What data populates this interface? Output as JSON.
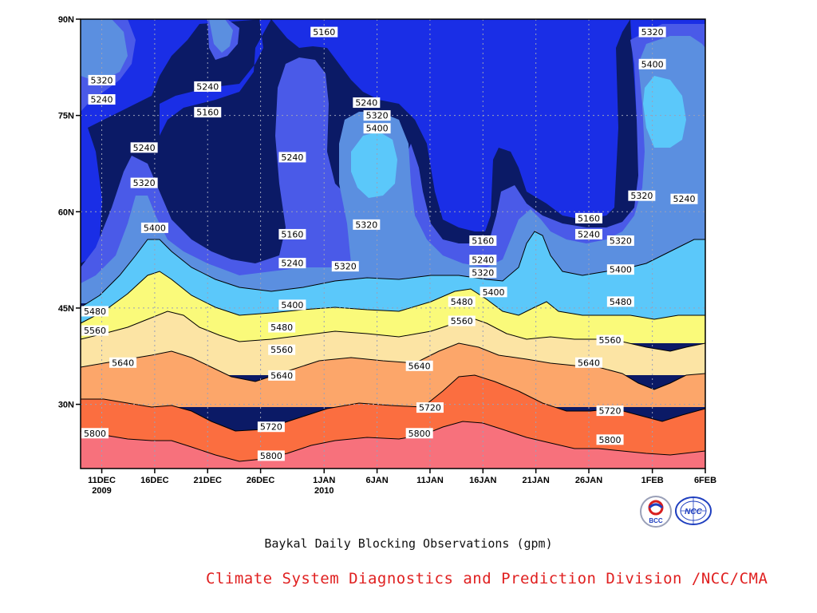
{
  "chart_data": {
    "type": "heatmap",
    "subtype": "filled-contour",
    "title": "Baykal Daily Blocking Observations (gpm)",
    "xlabel": "",
    "ylabel": "",
    "ylim_deg": [
      20,
      90
    ],
    "grid": true,
    "grid_style": "dotted",
    "y_ticks": [
      {
        "value": 30,
        "label": "30N"
      },
      {
        "value": 45,
        "label": "45N"
      },
      {
        "value": 60,
        "label": "60N"
      },
      {
        "value": 75,
        "label": "75N"
      },
      {
        "value": 90,
        "label": "90N"
      }
    ],
    "x_ticks": [
      {
        "date": "2009-12-11",
        "label": "11DEC",
        "sublabel": "2009"
      },
      {
        "date": "2009-12-16",
        "label": "16DEC",
        "sublabel": ""
      },
      {
        "date": "2009-12-21",
        "label": "21DEC",
        "sublabel": ""
      },
      {
        "date": "2009-12-26",
        "label": "26DEC",
        "sublabel": ""
      },
      {
        "date": "2010-01-01",
        "label": "1JAN",
        "sublabel": "2010"
      },
      {
        "date": "2010-01-06",
        "label": "6JAN",
        "sublabel": ""
      },
      {
        "date": "2010-01-11",
        "label": "11JAN",
        "sublabel": ""
      },
      {
        "date": "2010-01-16",
        "label": "16JAN",
        "sublabel": ""
      },
      {
        "date": "2010-01-21",
        "label": "21JAN",
        "sublabel": ""
      },
      {
        "date": "2010-01-26",
        "label": "26JAN",
        "sublabel": ""
      },
      {
        "date": "2010-02-01",
        "label": "1FEB",
        "sublabel": ""
      },
      {
        "date": "2010-02-06",
        "label": "6FEB",
        "sublabel": ""
      }
    ],
    "contour_levels": [
      5160,
      5240,
      5320,
      5400,
      5480,
      5560,
      5640,
      5720,
      5800
    ],
    "level_colors": {
      "below_5160": "#0b1a66",
      "5160_5240": "#1a2ee6",
      "5240_5320": "#4a5ae8",
      "5320_5400": "#5b8fe0",
      "5400_5480": "#5bc8fa",
      "5480_5560": "#fafa7a",
      "5560_5640": "#fce4a4",
      "5640_5720": "#fca66a",
      "5720_5800": "#fb6e40",
      "above_5800": "#f7717c"
    },
    "contour_labels": [
      {
        "text": "5160",
        "date": "2010-01-01",
        "lat": 88
      },
      {
        "text": "5320",
        "date": "2009-12-11",
        "lat": 80.5
      },
      {
        "text": "5240",
        "date": "2009-12-11",
        "lat": 77.5
      },
      {
        "text": "5240",
        "date": "2009-12-21",
        "lat": 79.5
      },
      {
        "text": "5160",
        "date": "2009-12-21",
        "lat": 75.5
      },
      {
        "text": "5240",
        "date": "2009-12-15",
        "lat": 70
      },
      {
        "text": "5320",
        "date": "2009-12-15",
        "lat": 64.5
      },
      {
        "text": "5400",
        "date": "2009-12-16",
        "lat": 57.5
      },
      {
        "text": "5240",
        "date": "2009-12-29",
        "lat": 68.5
      },
      {
        "text": "5160",
        "date": "2009-12-29",
        "lat": 56.5
      },
      {
        "text": "5240",
        "date": "2009-12-29",
        "lat": 52
      },
      {
        "text": "5320",
        "date": "2010-01-03",
        "lat": 51.5
      },
      {
        "text": "5400",
        "date": "2009-12-29",
        "lat": 45.5
      },
      {
        "text": "5240",
        "date": "2010-01-05",
        "lat": 77
      },
      {
        "text": "5320",
        "date": "2010-01-06",
        "lat": 75
      },
      {
        "text": "5400",
        "date": "2010-01-06",
        "lat": 73
      },
      {
        "text": "5320",
        "date": "2010-01-05",
        "lat": 58
      },
      {
        "text": "5160",
        "date": "2010-01-16",
        "lat": 55.5
      },
      {
        "text": "5240",
        "date": "2010-01-16",
        "lat": 52.5
      },
      {
        "text": "5320",
        "date": "2010-01-16",
        "lat": 50.5
      },
      {
        "text": "5400",
        "date": "2010-01-17",
        "lat": 47.5
      },
      {
        "text": "5480",
        "date": "2010-01-14",
        "lat": 46
      },
      {
        "text": "5560",
        "date": "2010-01-14",
        "lat": 43
      },
      {
        "text": "5160",
        "date": "2010-01-26",
        "lat": 59
      },
      {
        "text": "5240",
        "date": "2010-01-26",
        "lat": 56.5
      },
      {
        "text": "5320",
        "date": "2010-01-29",
        "lat": 55.5
      },
      {
        "text": "5400",
        "date": "2010-01-29",
        "lat": 51
      },
      {
        "text": "5480",
        "date": "2010-01-29",
        "lat": 46
      },
      {
        "text": "5560",
        "date": "2010-01-28",
        "lat": 40
      },
      {
        "text": "5640",
        "date": "2010-01-26",
        "lat": 36.5
      },
      {
        "text": "5720",
        "date": "2010-01-28",
        "lat": 29
      },
      {
        "text": "5800",
        "date": "2010-01-28",
        "lat": 24.5
      },
      {
        "text": "5320",
        "date": "2010-02-01",
        "lat": 88
      },
      {
        "text": "5400",
        "date": "2010-02-01",
        "lat": 83
      },
      {
        "text": "5320",
        "date": "2010-01-31",
        "lat": 62.5
      },
      {
        "text": "5240",
        "date": "2010-02-04",
        "lat": 62
      },
      {
        "text": "5480",
        "date": "2009-12-10",
        "lat": 44.5
      },
      {
        "text": "5560",
        "date": "2009-12-10",
        "lat": 41.5
      },
      {
        "text": "5640",
        "date": "2009-12-13",
        "lat": 36.5
      },
      {
        "text": "5480",
        "date": "2009-12-28",
        "lat": 42
      },
      {
        "text": "5560",
        "date": "2009-12-28",
        "lat": 38.5
      },
      {
        "text": "5640",
        "date": "2009-12-28",
        "lat": 34.5
      },
      {
        "text": "5640",
        "date": "2010-01-10",
        "lat": 36
      },
      {
        "text": "5720",
        "date": "2009-12-27",
        "lat": 26.5
      },
      {
        "text": "5800",
        "date": "2009-12-27",
        "lat": 22
      },
      {
        "text": "5720",
        "date": "2010-01-11",
        "lat": 29.5
      },
      {
        "text": "5800",
        "date": "2010-01-10",
        "lat": 25.5
      },
      {
        "text": "5800",
        "date": "2009-12-10",
        "lat": 25.5
      }
    ]
  },
  "caption": {
    "main": "Baykal Daily Blocking Observations (gpm)",
    "credit": "Climate System Diagnostics and Prediction Division /NCC/CMA",
    "credit_color": "#e02020"
  },
  "logos": {
    "bcc": "BCC",
    "ncc": "NCC"
  }
}
